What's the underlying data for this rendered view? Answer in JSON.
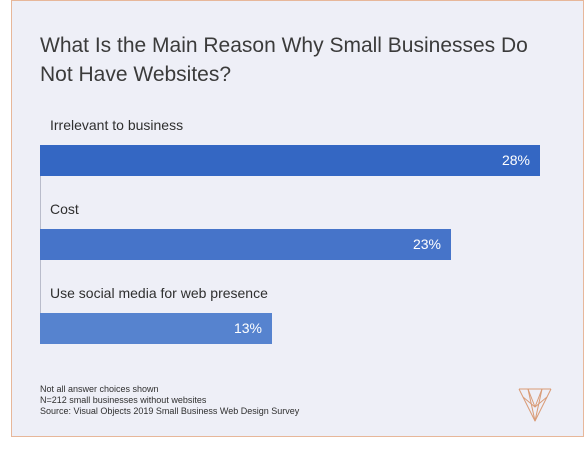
{
  "colors": {
    "card_background": "#eeeff7",
    "card_border": "#e7b79a",
    "bar_colors": [
      "#3467c3",
      "#4674c9",
      "#5683cf"
    ],
    "logo_color": "#d99b76"
  },
  "logo": {
    "icon": "visual-objects-v-logo-icon"
  },
  "notes": [
    "Not all answer choices shown",
    "N=212 small businesses without websites",
    "Source: Visual Objects 2019 Small Business Web Design Survey"
  ],
  "chart_data": {
    "type": "bar",
    "orientation": "horizontal",
    "title": "What Is the Main Reason Why Small Businesses Do Not Have Websites?",
    "categories": [
      "Irrelevant to business",
      "Cost",
      "Use social media for web presence"
    ],
    "values": [
      28,
      23,
      13
    ],
    "value_labels": [
      "28%",
      "23%",
      "13%"
    ],
    "unit": "%",
    "xlim": [
      0,
      28
    ],
    "grid": false,
    "legend": "none"
  }
}
